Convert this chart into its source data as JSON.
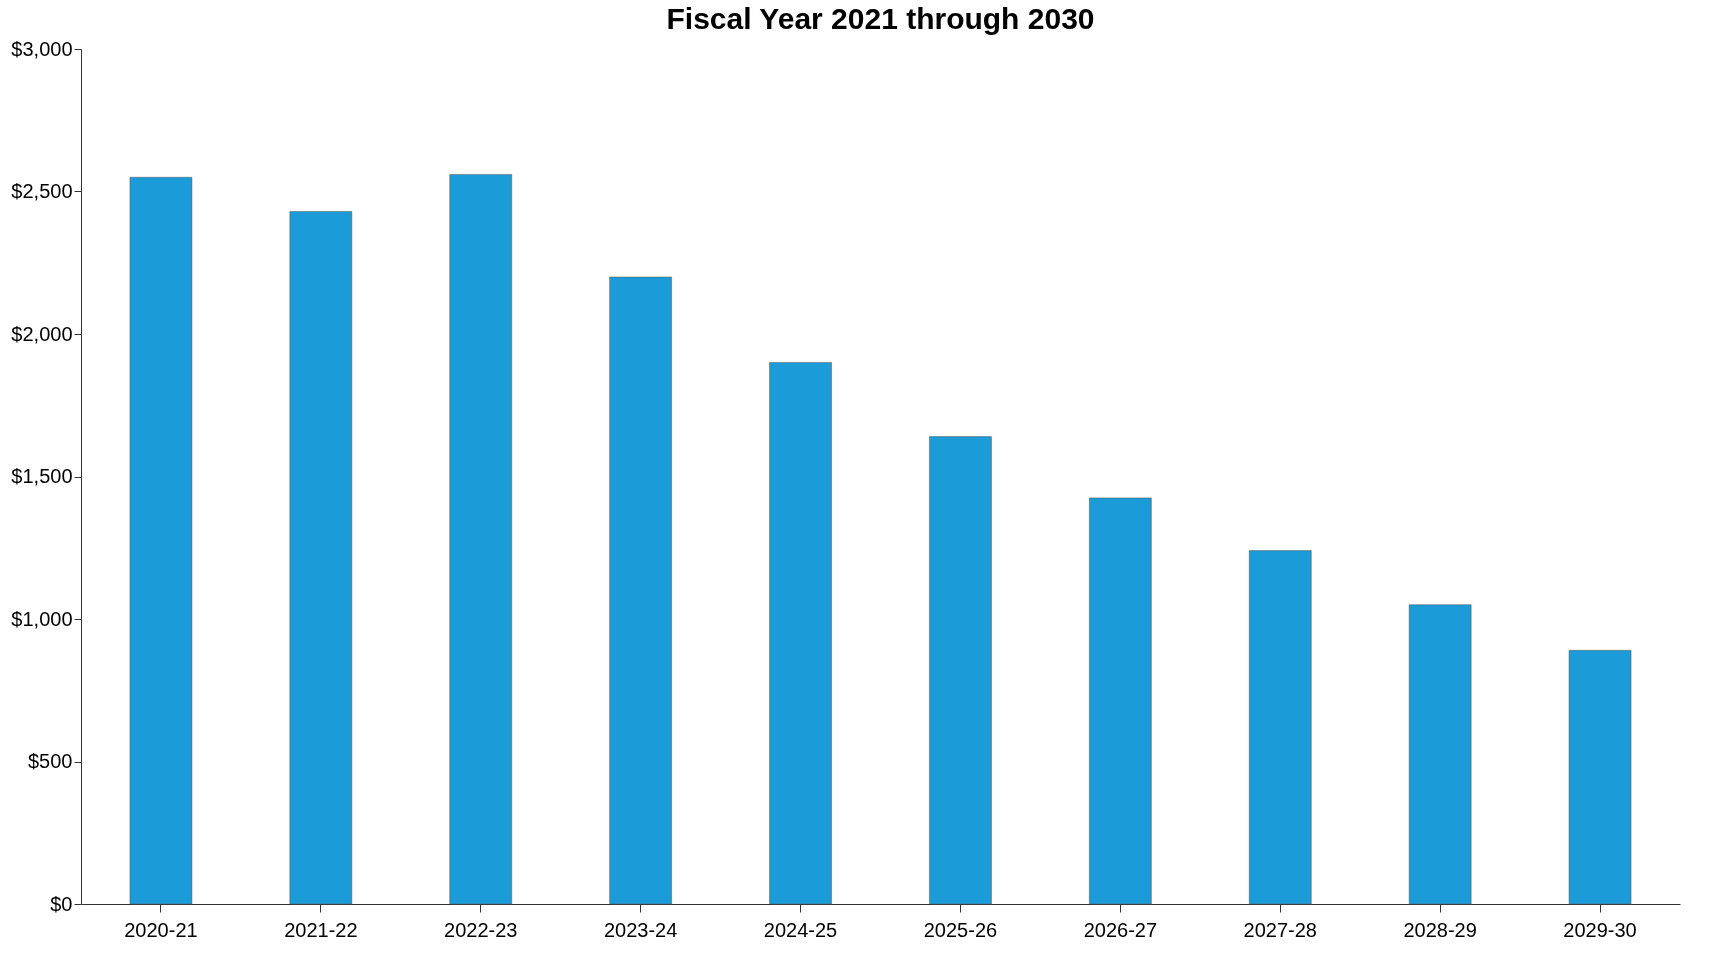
{
  "chart_data": {
    "type": "bar",
    "title": "Fiscal Year 2021 through 2030",
    "categories": [
      "2020-21",
      "2021-22",
      "2022-23",
      "2023-24",
      "2024-25",
      "2025-26",
      "2026-27",
      "2027-28",
      "2028-29",
      "2029-30"
    ],
    "values": [
      2550,
      2430,
      2560,
      2200,
      1900,
      1640,
      1425,
      1240,
      1050,
      890
    ],
    "color": "#1b9bd7",
    "ylim": [
      0,
      3000
    ],
    "yticks": [
      {
        "value": 0,
        "label": "$0"
      },
      {
        "value": 500,
        "label": "$500"
      },
      {
        "value": 1000,
        "label": "$1,000"
      },
      {
        "value": 1500,
        "label": "$1,500"
      },
      {
        "value": 2000,
        "label": "$2,000"
      },
      {
        "value": 2500,
        "label": "$2,500"
      },
      {
        "value": 3000,
        "label": "$3,000"
      }
    ],
    "grid": false
  }
}
